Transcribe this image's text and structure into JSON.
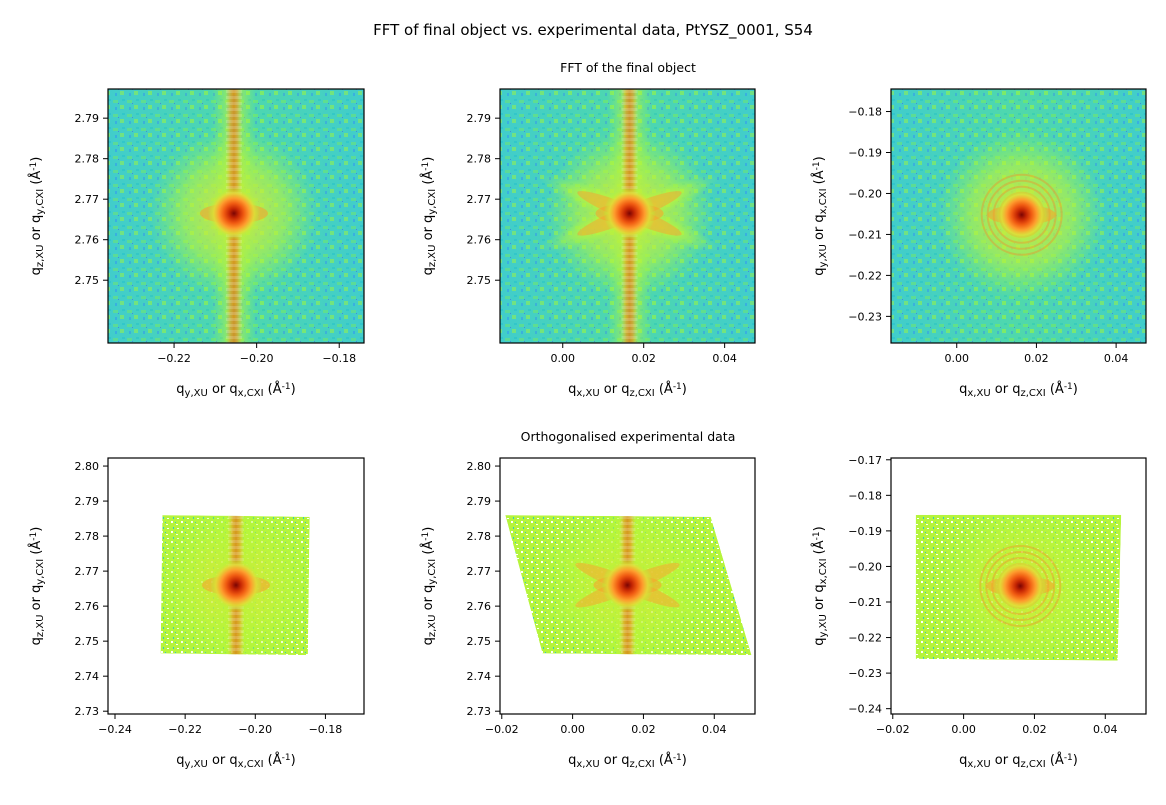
{
  "figure": {
    "suptitle": "FFT of final object vs. experimental data, PtYSZ_0001, S54",
    "row_titles": [
      "FFT of the final object",
      "Orthogonalised experimental data"
    ]
  },
  "chart_data": [
    {
      "type": "heatmap",
      "id": "fft-yz",
      "title": "FFT of the final object",
      "xlabel": "q_{y,XU} or q_{x,CXI} (Å^{-1})",
      "ylabel": "q_{z,XU} or q_{y,CXI} (Å^{-1})",
      "xlim": [
        -0.236,
        -0.174
      ],
      "ylim": [
        2.7345,
        2.7972
      ],
      "xticks": [
        -0.22,
        -0.2,
        -0.18
      ],
      "yticks": [
        2.75,
        2.76,
        2.77,
        2.78,
        2.79
      ],
      "peak": {
        "x": -0.2055,
        "y": 2.7665
      },
      "streaks": [
        "vertical"
      ],
      "colormap": "turbo",
      "log_scale": true
    },
    {
      "type": "heatmap",
      "id": "fft-xz",
      "title": "FFT of the final object",
      "xlabel": "q_{x,XU} or q_{z,CXI} (Å^{-1})",
      "ylabel": "q_{z,XU} or q_{y,CXI} (Å^{-1})",
      "xlim": [
        -0.0155,
        0.0475
      ],
      "ylim": [
        2.7345,
        2.7972
      ],
      "xticks": [
        0.0,
        0.02,
        0.04
      ],
      "yticks": [
        2.75,
        2.76,
        2.77,
        2.78,
        2.79
      ],
      "peak": {
        "x": 0.0165,
        "y": 2.7665
      },
      "streaks": [
        "vertical",
        "diagonal"
      ],
      "colormap": "turbo",
      "log_scale": true
    },
    {
      "type": "heatmap",
      "id": "fft-xy",
      "title": "FFT of the final object",
      "xlabel": "q_{x,XU} or q_{z,CXI} (Å^{-1})",
      "ylabel": "q_{y,XU} or q_{x,CXI} (Å^{-1})",
      "xlim": [
        -0.0165,
        0.0475
      ],
      "ylim": [
        -0.2365,
        -0.1745
      ],
      "xticks": [
        0.0,
        0.02,
        0.04
      ],
      "yticks": [
        -0.23,
        -0.22,
        -0.21,
        -0.2,
        -0.19,
        -0.18
      ],
      "peak": {
        "x": 0.0163,
        "y": -0.2052
      },
      "streaks": [
        "radial"
      ],
      "colormap": "turbo",
      "log_scale": true
    },
    {
      "type": "heatmap",
      "id": "data-yz",
      "title": "Orthogonalised experimental data",
      "xlabel": "q_{y,XU} or q_{x,CXI} (Å^{-1})",
      "ylabel": "q_{z,XU} or q_{y,CXI} (Å^{-1})",
      "xlim": [
        -0.242,
        -0.169
      ],
      "ylim": [
        2.7292,
        2.8023
      ],
      "xticks": [
        -0.24,
        -0.22,
        -0.2,
        -0.18
      ],
      "yticks": [
        2.73,
        2.74,
        2.75,
        2.76,
        2.77,
        2.78,
        2.79,
        2.8
      ],
      "region": [
        [
          -0.227,
          2.7465
        ],
        [
          -0.2265,
          2.786
        ],
        [
          -0.1845,
          2.7855
        ],
        [
          -0.185,
          2.746
        ]
      ],
      "peak": {
        "x": -0.2055,
        "y": 2.766
      },
      "streaks": [
        "vertical"
      ],
      "colormap": "turbo",
      "log_scale": true
    },
    {
      "type": "heatmap",
      "id": "data-xz",
      "title": "Orthogonalised experimental data",
      "xlabel": "q_{x,XU} or q_{z,CXI} (Å^{-1})",
      "ylabel": "q_{z,XU} or q_{y,CXI} (Å^{-1})",
      "xlim": [
        -0.0205,
        0.0515
      ],
      "ylim": [
        2.7292,
        2.8023
      ],
      "xticks": [
        -0.02,
        0.0,
        0.02,
        0.04
      ],
      "yticks": [
        2.73,
        2.74,
        2.75,
        2.76,
        2.77,
        2.78,
        2.79,
        2.8
      ],
      "region": [
        [
          -0.0085,
          2.7465
        ],
        [
          -0.019,
          2.786
        ],
        [
          0.039,
          2.7855
        ],
        [
          0.0505,
          2.746
        ]
      ],
      "peak": {
        "x": 0.0155,
        "y": 2.766
      },
      "streaks": [
        "vertical",
        "diagonal"
      ],
      "colormap": "turbo",
      "log_scale": true
    },
    {
      "type": "heatmap",
      "id": "data-xy",
      "title": "Orthogonalised experimental data",
      "xlabel": "q_{x,XU} or q_{z,CXI} (Å^{-1})",
      "ylabel": "q_{y,XU} or q_{x,CXI} (Å^{-1})",
      "xlim": [
        -0.0205,
        0.0515
      ],
      "ylim": [
        -0.2415,
        -0.1695
      ],
      "xticks": [
        -0.02,
        0.0,
        0.02,
        0.04
      ],
      "yticks": [
        -0.24,
        -0.23,
        -0.22,
        -0.21,
        -0.2,
        -0.19,
        -0.18,
        -0.17
      ],
      "region": [
        [
          -0.0135,
          -0.226
        ],
        [
          -0.0135,
          -0.1855
        ],
        [
          0.0445,
          -0.1855
        ],
        [
          0.0435,
          -0.2265
        ]
      ],
      "peak": {
        "x": 0.016,
        "y": -0.2055
      },
      "streaks": [
        "radial"
      ],
      "colormap": "turbo",
      "log_scale": true
    }
  ]
}
